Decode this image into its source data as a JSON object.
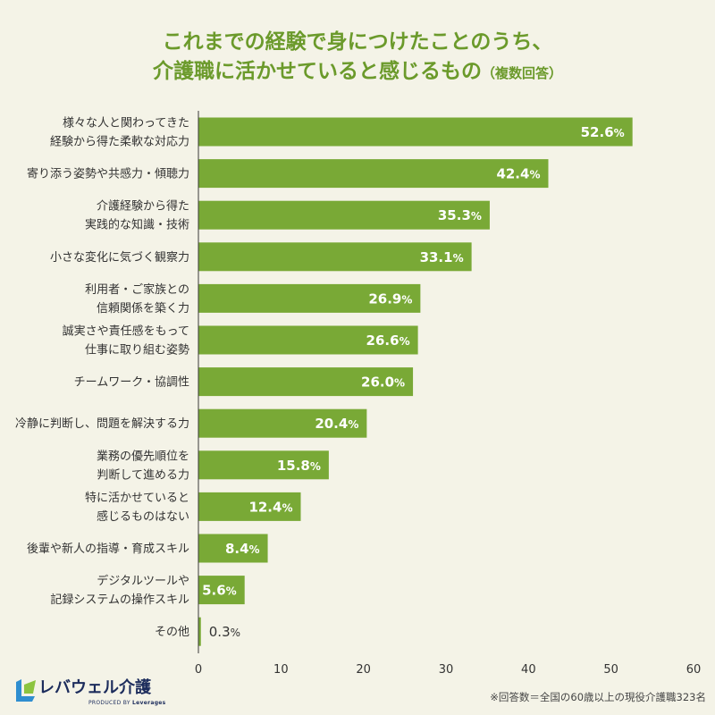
{
  "theme": {
    "background": "#f4f3e7",
    "title_color": "#6b9a2b",
    "brand_navy": "#1c2c5c",
    "logo_blue": "#2f8ed0",
    "logo_green": "#8cc43f"
  },
  "logo": {
    "icon": "leverages-logo-icon",
    "name": "レバウェル介護",
    "tagline_prefix": "PRODUCED BY",
    "tagline_brand": "Leverages"
  },
  "footnote": "※回答数＝全国の60歳以上の現役介護職323名",
  "chart_data": {
    "type": "bar",
    "orientation": "horizontal",
    "title": [
      "これまでの経験で身につけたことのうち、",
      "介護職に活かせていると感じるもの"
    ],
    "title_note": "（複数回答）",
    "xlabel": "",
    "ylabel": "",
    "unit": "%",
    "categories": [
      [
        "様々な人と関わってきた",
        "経験から得た柔軟な対応力"
      ],
      [
        "寄り添う姿勢や共感力・傾聴力"
      ],
      [
        "介護経験から得た",
        "実践的な知識・技術"
      ],
      [
        "小さな変化に気づく観察力"
      ],
      [
        "利用者・ご家族との",
        "信頼関係を築く力"
      ],
      [
        "誠実さや責任感をもって",
        "仕事に取り組む姿勢"
      ],
      [
        "チームワーク・協調性"
      ],
      [
        "冷静に判断し、問題を解決する力"
      ],
      [
        "業務の優先順位を",
        "判断して進める力"
      ],
      [
        "特に活かせていると",
        "感じるものはない"
      ],
      [
        "後輩や新人の指導・育成スキル"
      ],
      [
        "デジタルツールや",
        "記録システムの操作スキル"
      ],
      [
        "その他"
      ]
    ],
    "values": [
      52.6,
      42.4,
      35.3,
      33.1,
      26.9,
      26.6,
      26.0,
      20.4,
      15.8,
      12.4,
      8.4,
      5.6,
      0.3
    ],
    "xlim": [
      0,
      60
    ],
    "xticks": [
      0,
      10,
      20,
      30,
      40,
      50,
      60
    ],
    "grid": false,
    "legend": "none",
    "data_labels": true,
    "colors": {
      "bar": "#79a936",
      "value_label_inside": "#ffffff",
      "value_label_outside": "#333333",
      "axis": "#3a3a3a"
    }
  }
}
